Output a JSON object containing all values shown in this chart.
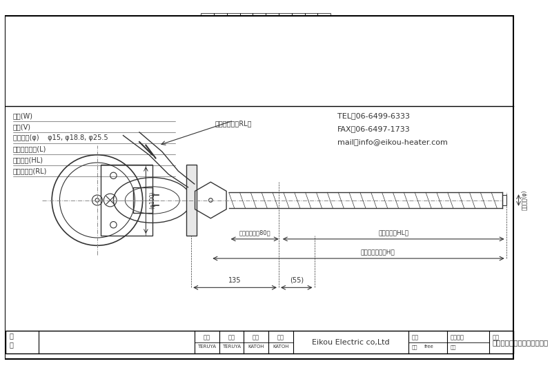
{
  "bg_color": "#ffffff",
  "line_color": "#333333",
  "dim_color": "#444444",
  "border_color": "#000000",
  "title": "フレキシブルボルトヒーター",
  "company": "Eikou Electric co,Ltd",
  "tel": "TEL：06-6499-6333",
  "fax": "FAX：06-6497-1733",
  "mail": "mail：info@eikou-heater.com",
  "specs": [
    "容量(W)",
    "電圧(V)",
    "パイプ径(φ)    φ15, φ18.8, φ25.5",
    "ヒーター長さ(L)",
    "発熱長さ(HL)",
    "リード線長(RL)"
  ],
  "dim_135": "135",
  "dim_55": "(55)",
  "dim_phi100": "(φ100)",
  "dim_heater_H": "ヒーター長さ（H）",
  "dim_non_heat_80": "非発熱長さ（80）",
  "dim_heat_HL": "発熱長さ（HL）",
  "dim_pipe_phi": "パイプ径(φ)",
  "dim_lead_RL": "リード線長（RL）",
  "title_row_labels": [
    "改",
    "訂"
  ],
  "footer_labels": [
    "承認",
    "検図",
    "設計",
    "製図"
  ],
  "footer_names": [
    "TERUYA",
    "TERUYA",
    "KATOH",
    "KATOH"
  ],
  "footer_date": "日付",
  "footer_mgmt": "管理番号",
  "footer_name_label": "名称",
  "footer_scale_label": "尺度",
  "footer_scale": "free",
  "footer_drawing_label": "図番"
}
